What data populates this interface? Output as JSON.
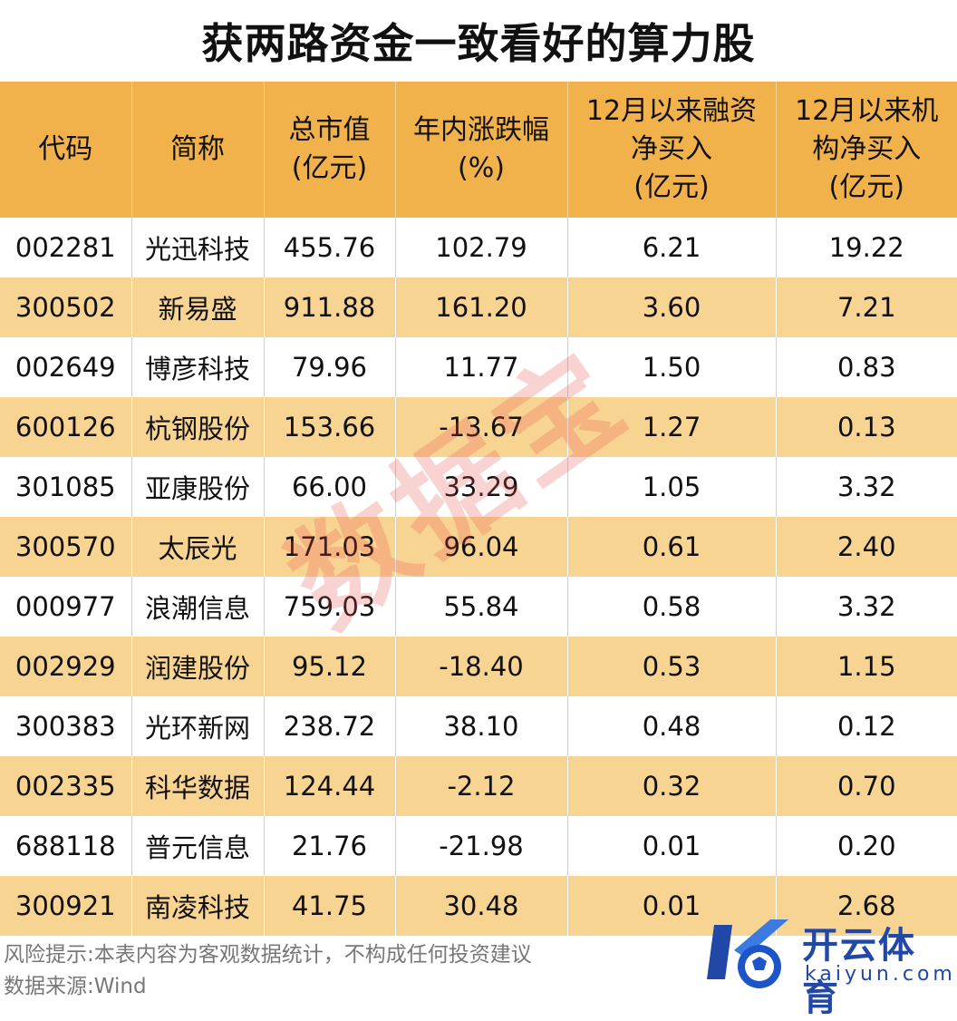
{
  "title": "获两路资金一致看好的算力股",
  "headers": [
    [
      "代码"
    ],
    [
      "简称"
    ],
    [
      "总市值",
      "(亿元)"
    ],
    [
      "年内涨跌幅",
      "(%)"
    ],
    [
      "12月以来融资",
      "净买入",
      "(亿元)"
    ],
    [
      "12月以来机",
      "构净买入",
      "(亿元)"
    ]
  ],
  "rows": [
    [
      "002281",
      "光迅科技",
      "455.76",
      "102.79",
      "6.21",
      "19.22"
    ],
    [
      "300502",
      "新易盛",
      "911.88",
      "161.20",
      "3.60",
      "7.21"
    ],
    [
      "002649",
      "博彦科技",
      "79.96",
      "11.77",
      "1.50",
      "0.83"
    ],
    [
      "600126",
      "杭钢股份",
      "153.66",
      "-13.67",
      "1.27",
      "0.13"
    ],
    [
      "301085",
      "亚康股份",
      "66.00",
      "33.29",
      "1.05",
      "3.32"
    ],
    [
      "300570",
      "太辰光",
      "171.03",
      "96.04",
      "0.61",
      "2.40"
    ],
    [
      "000977",
      "浪潮信息",
      "759.03",
      "55.84",
      "0.58",
      "3.32"
    ],
    [
      "002929",
      "润建股份",
      "95.12",
      "-18.40",
      "0.53",
      "1.15"
    ],
    [
      "300383",
      "光环新网",
      "238.72",
      "38.10",
      "0.48",
      "0.12"
    ],
    [
      "002335",
      "科华数据",
      "124.44",
      "-2.12",
      "0.32",
      "0.70"
    ],
    [
      "688118",
      "普元信息",
      "21.76",
      "-21.98",
      "0.01",
      "0.20"
    ],
    [
      "300921",
      "南凌科技",
      "41.75",
      "30.48",
      "0.01",
      "2.68"
    ]
  ],
  "watermark": "数据宝",
  "footer": {
    "risk_note": "风险提示:本表内容为客观数据统计，不构成任何投资建议",
    "source": "数据来源:Wind"
  },
  "logo": {
    "name": "开云体育",
    "domain": "kaiyun.com"
  },
  "colors": {
    "header_bg": "#f2b24b",
    "stripe_bg": "#f8d493",
    "logo_blue": "#2148a6"
  }
}
